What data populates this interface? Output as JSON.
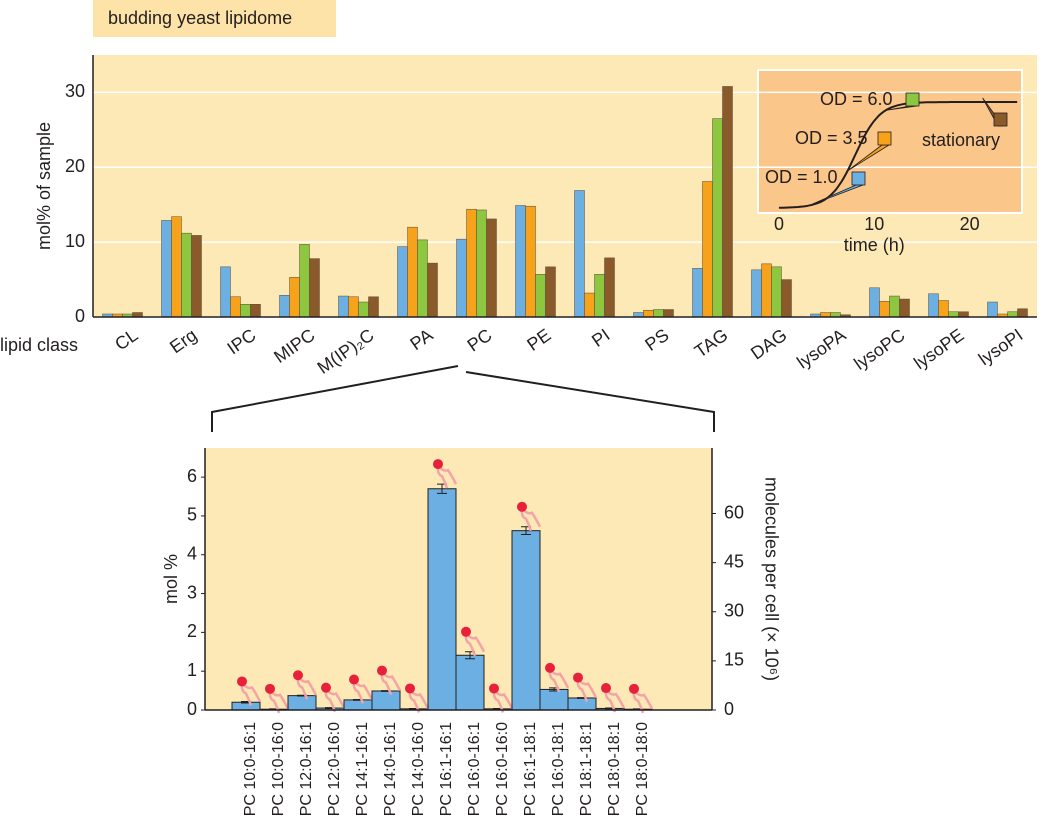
{
  "chart_data": [
    {
      "type": "bar",
      "title": "budding yeast lipidome",
      "ylabel": "mol% of sample",
      "xlabel": "lipid class",
      "categories": [
        "CL",
        "Erg",
        "IPC",
        "MIPC",
        "M(IP)₂C",
        "PA",
        "PC",
        "PE",
        "PI",
        "PS",
        "TAG",
        "DAG",
        "lysoPA",
        "lysoPC",
        "lysoPE",
        "lysoPI"
      ],
      "series": [
        {
          "name": "OD = 1.0",
          "color": "#6cafe2",
          "values": [
            0.4,
            12.9,
            6.7,
            2.9,
            2.8,
            9.4,
            10.4,
            14.9,
            16.9,
            0.6,
            6.5,
            6.3,
            0.4,
            3.9,
            3.1,
            2.0
          ]
        },
        {
          "name": "OD = 3.5",
          "color": "#f7a21b",
          "values": [
            0.4,
            13.4,
            2.7,
            5.3,
            2.7,
            12.0,
            14.4,
            14.8,
            3.2,
            0.9,
            18.1,
            7.1,
            0.6,
            2.1,
            2.2,
            0.4
          ]
        },
        {
          "name": "OD = 6.0",
          "color": "#8dc63f",
          "values": [
            0.4,
            11.2,
            1.7,
            9.7,
            2.0,
            10.3,
            14.3,
            5.7,
            5.7,
            1.0,
            26.5,
            6.7,
            0.6,
            2.8,
            0.7,
            0.7
          ]
        },
        {
          "name": "stationary",
          "color": "#8b5a2b",
          "values": [
            0.6,
            10.9,
            1.7,
            7.8,
            2.7,
            7.2,
            13.1,
            6.7,
            7.9,
            1.0,
            30.8,
            5.0,
            0.3,
            2.4,
            0.7,
            1.1
          ]
        }
      ],
      "ylim": [
        0,
        35
      ],
      "yticks": [
        0,
        10,
        20,
        30
      ],
      "grid": true,
      "inset": {
        "xlabel": "time (h)",
        "xlim": [
          -2.2,
          25.5
        ],
        "xticks": [
          0,
          10,
          20
        ]
      }
    },
    {
      "type": "bar",
      "ylabel": "mol %",
      "y2label": "molecules per cell (× 10⁶)",
      "categories": [
        "PC 10:0-16:1",
        "PC 10:0-16:0",
        "PC 12:0-16:1",
        "PC 12:0-16:0",
        "PC 14:1-16:1",
        "PC 14:0-16:1",
        "PC 14:0-16:0",
        "PC 16:1-16:1",
        "PC 16:0-16:1",
        "PC 16:0-16:0",
        "PC 16:1-18:1",
        "PC 16:0-18:1",
        "PC 18:1-18:1",
        "PC 18:0-18:1",
        "PC 18:0-18:0"
      ],
      "values": [
        0.2,
        0.02,
        0.37,
        0.05,
        0.26,
        0.49,
        0.03,
        5.7,
        1.41,
        0.03,
        4.62,
        0.53,
        0.31,
        0.04,
        0.02
      ],
      "errors": [
        0.02,
        0.01,
        0.01,
        0.01,
        0.01,
        0.01,
        0.01,
        0.12,
        0.09,
        0.01,
        0.1,
        0.04,
        0.01,
        0.01,
        0.01
      ],
      "color": "#6cafe2",
      "ylim": [
        0,
        6.75
      ],
      "yticks": [
        0,
        1,
        2,
        3,
        4,
        5,
        6
      ],
      "y2lim": [
        0,
        80
      ],
      "y2ticks": [
        0,
        15,
        30,
        45,
        60
      ]
    }
  ]
}
